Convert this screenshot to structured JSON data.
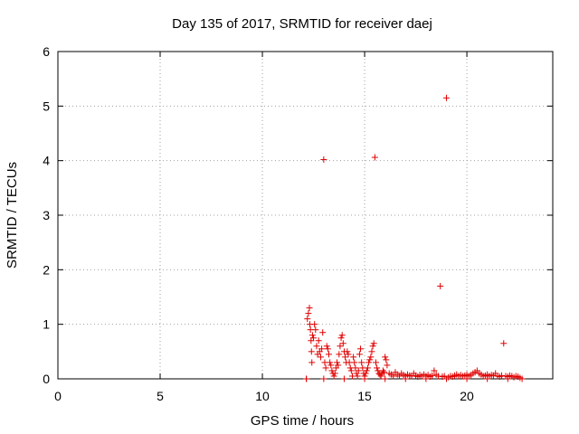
{
  "chart_data": {
    "type": "scatter",
    "title": "Day 135 of 2017, SRMTID for receiver daej",
    "xlabel": "GPS time / hours",
    "ylabel": "SRMTID / TECUs",
    "xlim": [
      0,
      24.2
    ],
    "ylim": [
      0,
      6
    ],
    "xticks": [
      0,
      5,
      10,
      15,
      20
    ],
    "yticks": [
      0,
      1,
      2,
      3,
      4,
      5,
      6
    ],
    "grid": true,
    "marker": "plus",
    "color": "#e00000",
    "series": [
      {
        "name": "SRMTID",
        "points": [
          [
            12.15,
            0.0
          ],
          [
            12.2,
            1.1
          ],
          [
            12.25,
            1.2
          ],
          [
            12.3,
            1.3
          ],
          [
            12.32,
            1.0
          ],
          [
            12.35,
            0.9
          ],
          [
            12.38,
            0.7
          ],
          [
            12.4,
            0.5
          ],
          [
            12.42,
            0.3
          ],
          [
            12.45,
            0.8
          ],
          [
            12.5,
            0.75
          ],
          [
            12.55,
            1.0
          ],
          [
            12.6,
            0.9
          ],
          [
            12.65,
            0.6
          ],
          [
            12.7,
            0.45
          ],
          [
            12.75,
            0.7
          ],
          [
            12.8,
            0.5
          ],
          [
            12.85,
            0.4
          ],
          [
            12.9,
            0.55
          ],
          [
            12.95,
            0.85
          ],
          [
            13.0,
            4.02
          ],
          [
            13.05,
            0.3
          ],
          [
            13.1,
            0.2
          ],
          [
            13.15,
            0.6
          ],
          [
            13.2,
            0.55
          ],
          [
            13.25,
            0.45
          ],
          [
            13.3,
            0.3
          ],
          [
            13.35,
            0.25
          ],
          [
            13.4,
            0.15
          ],
          [
            13.45,
            0.1
          ],
          [
            13.5,
            0.05
          ],
          [
            13.55,
            0.1
          ],
          [
            13.6,
            0.2
          ],
          [
            13.65,
            0.3
          ],
          [
            13.7,
            0.25
          ],
          [
            13.75,
            0.45
          ],
          [
            13.8,
            0.6
          ],
          [
            13.85,
            0.75
          ],
          [
            13.9,
            0.8
          ],
          [
            13.95,
            0.65
          ],
          [
            14.0,
            0.5
          ],
          [
            14.05,
            0.4
          ],
          [
            14.1,
            0.3
          ],
          [
            14.15,
            0.5
          ],
          [
            14.2,
            0.45
          ],
          [
            14.25,
            0.3
          ],
          [
            14.3,
            0.2
          ],
          [
            14.35,
            0.15
          ],
          [
            14.4,
            0.05
          ],
          [
            14.45,
            0.4
          ],
          [
            14.5,
            0.3
          ],
          [
            14.55,
            0.2
          ],
          [
            14.6,
            0.1
          ],
          [
            14.65,
            0.05
          ],
          [
            14.7,
            0.15
          ],
          [
            14.75,
            0.45
          ],
          [
            14.8,
            0.55
          ],
          [
            14.85,
            0.3
          ],
          [
            14.9,
            0.2
          ],
          [
            14.95,
            0.1
          ],
          [
            15.0,
            0.05
          ],
          [
            15.05,
            0.1
          ],
          [
            15.1,
            0.15
          ],
          [
            15.15,
            0.2
          ],
          [
            15.2,
            0.3
          ],
          [
            15.25,
            0.35
          ],
          [
            15.3,
            0.4
          ],
          [
            15.35,
            0.5
          ],
          [
            15.4,
            0.6
          ],
          [
            15.45,
            0.65
          ],
          [
            15.5,
            4.06
          ],
          [
            15.55,
            0.3
          ],
          [
            15.6,
            0.2
          ],
          [
            15.65,
            0.15
          ],
          [
            15.7,
            0.1
          ],
          [
            15.75,
            0.08
          ],
          [
            15.8,
            0.05
          ],
          [
            15.85,
            0.1
          ],
          [
            15.9,
            0.15
          ],
          [
            15.95,
            0.12
          ],
          [
            16.0,
            0.4
          ],
          [
            16.05,
            0.35
          ],
          [
            16.1,
            0.25
          ],
          [
            16.2,
            0.1
          ],
          [
            16.3,
            0.08
          ],
          [
            16.4,
            0.05
          ],
          [
            16.5,
            0.12
          ],
          [
            16.6,
            0.08
          ],
          [
            16.7,
            0.05
          ],
          [
            16.8,
            0.1
          ],
          [
            16.9,
            0.07
          ],
          [
            17.0,
            0.05
          ],
          [
            17.1,
            0.08
          ],
          [
            17.2,
            0.06
          ],
          [
            17.3,
            0.05
          ],
          [
            17.4,
            0.1
          ],
          [
            17.5,
            0.06
          ],
          [
            17.6,
            0.04
          ],
          [
            17.7,
            0.07
          ],
          [
            17.8,
            0.05
          ],
          [
            17.9,
            0.08
          ],
          [
            18.0,
            0.05
          ],
          [
            18.1,
            0.07
          ],
          [
            18.2,
            0.04
          ],
          [
            18.3,
            0.06
          ],
          [
            18.4,
            0.15
          ],
          [
            18.5,
            0.08
          ],
          [
            18.6,
            0.05
          ],
          [
            18.7,
            1.7
          ],
          [
            18.8,
            0.04
          ],
          [
            18.9,
            0.05
          ],
          [
            19.0,
            5.15
          ],
          [
            19.1,
            0.03
          ],
          [
            19.2,
            0.05
          ],
          [
            19.3,
            0.04
          ],
          [
            19.4,
            0.06
          ],
          [
            19.5,
            0.08
          ],
          [
            19.6,
            0.05
          ],
          [
            19.7,
            0.07
          ],
          [
            19.8,
            0.05
          ],
          [
            19.9,
            0.06
          ],
          [
            20.0,
            0.08
          ],
          [
            20.1,
            0.05
          ],
          [
            20.2,
            0.07
          ],
          [
            20.3,
            0.1
          ],
          [
            20.4,
            0.12
          ],
          [
            20.5,
            0.15
          ],
          [
            20.6,
            0.1
          ],
          [
            20.7,
            0.08
          ],
          [
            20.8,
            0.05
          ],
          [
            20.9,
            0.06
          ],
          [
            21.0,
            0.08
          ],
          [
            21.1,
            0.05
          ],
          [
            21.2,
            0.07
          ],
          [
            21.3,
            0.06
          ],
          [
            21.4,
            0.1
          ],
          [
            21.5,
            0.05
          ],
          [
            21.6,
            0.04
          ],
          [
            21.7,
            0.06
          ],
          [
            21.8,
            0.65
          ],
          [
            21.9,
            0.05
          ],
          [
            22.0,
            0.04
          ],
          [
            22.1,
            0.06
          ],
          [
            22.2,
            0.05
          ],
          [
            22.3,
            0.03
          ],
          [
            22.4,
            0.05
          ],
          [
            22.5,
            0.04
          ],
          [
            22.6,
            0.02
          ],
          [
            22.7,
            0.0
          ],
          [
            12.15,
            0.0
          ],
          [
            13.0,
            0.0
          ],
          [
            14.0,
            0.0
          ],
          [
            15.0,
            0.0
          ],
          [
            16.0,
            0.0
          ],
          [
            17.0,
            0.0
          ],
          [
            18.0,
            0.0
          ],
          [
            19.0,
            0.0
          ],
          [
            20.0,
            0.0
          ],
          [
            21.0,
            0.0
          ],
          [
            22.0,
            0.0
          ]
        ]
      }
    ]
  }
}
